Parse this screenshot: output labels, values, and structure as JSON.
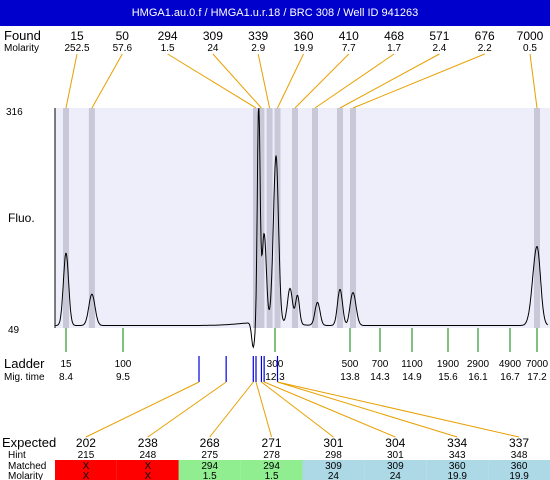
{
  "title": "HMGA1.au.0.f / HMGA1.u.r.18 / BRC 308 / Well ID 941263",
  "labels": {
    "found": "Found",
    "molarity": "Molarity",
    "fluo": "Fluo.",
    "ladder": "Ladder",
    "mig_time": "Mig. time",
    "expected": "Expected",
    "hint": "Hint",
    "matched": "Matched",
    "molarity_bottom": "Molarity"
  },
  "colors": {
    "title_bg": "#0000cc",
    "plot_bg": "#eeeefa",
    "band": "#c8c8d8",
    "connector": "#e8a000",
    "ladder_tick": "#008000",
    "band_marker": "#0000dd",
    "unmatched": "#ff0000",
    "matched_ok": "#90ee90",
    "matched_range": "#add8e6"
  },
  "chart_data": {
    "type": "line",
    "y_axis": {
      "min_label": "49",
      "max_label": "316",
      "ylim": [
        49,
        316
      ]
    },
    "found_peaks": [
      {
        "size": "15",
        "molarity": "252.5",
        "mig_time": 8.4
      },
      {
        "size": "50",
        "molarity": "57.6",
        "mig_time": 8.9
      },
      {
        "size": "294",
        "molarity": "1.5",
        "mig_time": 11.95
      },
      {
        "size": "309",
        "molarity": "24",
        "mig_time": 12.05
      },
      {
        "size": "339",
        "molarity": "2.9",
        "mig_time": 12.2
      },
      {
        "size": "360",
        "molarity": "19.9",
        "mig_time": 12.35
      },
      {
        "size": "410",
        "molarity": "7.7",
        "mig_time": 12.7
      },
      {
        "size": "468",
        "molarity": "1.7",
        "mig_time": 13.1
      },
      {
        "size": "571",
        "molarity": "2.4",
        "mig_time": 13.6
      },
      {
        "size": "676",
        "molarity": "2.2",
        "mig_time": 13.85
      },
      {
        "size": "7000",
        "molarity": "0.5",
        "mig_time": 17.2
      }
    ],
    "ladder": [
      {
        "size": "15",
        "mig_time": "8.4",
        "t": 8.4
      },
      {
        "size": "100",
        "mig_time": "9.5",
        "t": 9.5
      },
      {
        "size": "300",
        "mig_time": "12.3",
        "t": 12.3
      },
      {
        "size": "500",
        "mig_time": "13.8",
        "t": 13.8
      },
      {
        "size": "700",
        "mig_time": "14.3",
        "t": 14.3
      },
      {
        "size": "1100",
        "mig_time": "14.9",
        "t": 14.9
      },
      {
        "size": "1900",
        "mig_time": "15.6",
        "t": 15.6
      },
      {
        "size": "2900",
        "mig_time": "16.1",
        "t": 16.1
      },
      {
        "size": "4900",
        "mig_time": "16.7",
        "t": 16.7
      },
      {
        "size": "7000",
        "mig_time": "17.2",
        "t": 17.2
      }
    ],
    "expected_markers_time": [
      10.9,
      11.4,
      11.9,
      11.95,
      12.05,
      12.1,
      12.35
    ],
    "trace": {
      "baseline": 52,
      "peaks": [
        {
          "t": 8.4,
          "h": 140,
          "w": 0.05
        },
        {
          "t": 8.9,
          "h": 90,
          "w": 0.06
        },
        {
          "t": 11.9,
          "h": 22,
          "w": 0.03
        },
        {
          "t": 12.0,
          "h": 316,
          "w": 0.025
        },
        {
          "t": 12.1,
          "h": 160,
          "w": 0.04
        },
        {
          "t": 12.32,
          "h": 255,
          "w": 0.05
        },
        {
          "t": 12.6,
          "h": 95,
          "w": 0.05
        },
        {
          "t": 12.75,
          "h": 87,
          "w": 0.04
        },
        {
          "t": 13.15,
          "h": 80,
          "w": 0.05
        },
        {
          "t": 13.6,
          "h": 96,
          "w": 0.05
        },
        {
          "t": 13.85,
          "h": 92,
          "w": 0.05
        },
        {
          "t": 17.2,
          "h": 148,
          "w": 0.08
        }
      ]
    },
    "expected": [
      {
        "size": "202",
        "hint": "215",
        "matched": "X",
        "molarity": "X",
        "status": "unmatched"
      },
      {
        "size": "238",
        "hint": "248",
        "matched": "X",
        "molarity": "X",
        "status": "unmatched"
      },
      {
        "size": "268",
        "hint": "275",
        "matched": "294",
        "molarity": "1.5",
        "status": "ok"
      },
      {
        "size": "271",
        "hint": "278",
        "matched": "294",
        "molarity": "1.5",
        "status": "ok"
      },
      {
        "size": "301",
        "hint": "298",
        "matched": "309",
        "molarity": "24",
        "status": "range"
      },
      {
        "size": "304",
        "hint": "301",
        "matched": "309",
        "molarity": "24",
        "status": "range"
      },
      {
        "size": "334",
        "hint": "343",
        "matched": "360",
        "molarity": "19.9",
        "status": "range"
      },
      {
        "size": "337",
        "hint": "348",
        "matched": "360",
        "molarity": "19.9",
        "status": "range"
      }
    ]
  }
}
